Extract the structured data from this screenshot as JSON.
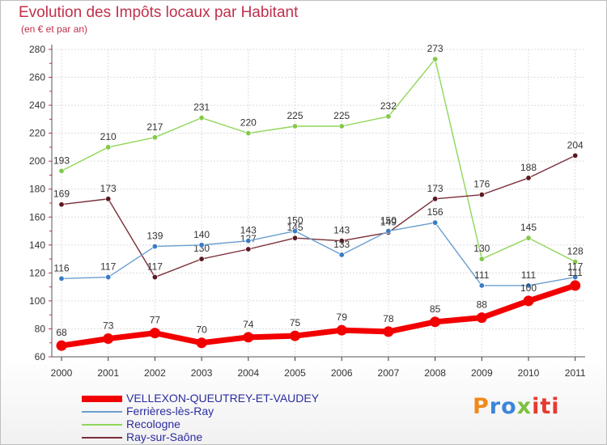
{
  "title": "Evolution des Impôts locaux par Habitant",
  "subtitle": "(en € et par an)",
  "logo": {
    "p": "P",
    "ro": "ro",
    "x": "x",
    "iti": "iti"
  },
  "chart_data": {
    "type": "line",
    "x": [
      "2000",
      "2001",
      "2002",
      "2003",
      "2004",
      "2005",
      "2006",
      "2007",
      "2008",
      "2009",
      "2010",
      "2011"
    ],
    "ylim": [
      60,
      280
    ],
    "yticks": [
      60,
      80,
      100,
      120,
      140,
      160,
      180,
      200,
      220,
      240,
      260,
      280
    ],
    "grid": true,
    "legend_position": "bottom-left",
    "series": [
      {
        "name": "Recologne",
        "color": "#90d65a",
        "point_color": "#84c94a",
        "values": [
          193,
          210,
          217,
          231,
          220,
          225,
          225,
          232,
          273,
          130,
          145,
          128
        ]
      },
      {
        "name": "Ray-sur-Saône",
        "color": "#7a2e38",
        "point_color": "#5c1a22",
        "values": [
          169,
          173,
          117,
          130,
          137,
          145,
          143,
          149,
          173,
          176,
          188,
          204
        ]
      },
      {
        "name": "Ferrières-lès-Ray",
        "color": "#6b9ed0",
        "point_color": "#3a7cc4",
        "values": [
          116,
          117,
          139,
          140,
          143,
          150,
          133,
          150,
          156,
          111,
          111,
          117
        ]
      },
      {
        "name": "VELLEXON-QUEUTREY-ET-VAUDEY",
        "color": "#f20000",
        "point_color": "#f20000",
        "values": [
          68,
          73,
          77,
          70,
          74,
          75,
          79,
          78,
          85,
          88,
          100,
          111
        ]
      }
    ]
  }
}
